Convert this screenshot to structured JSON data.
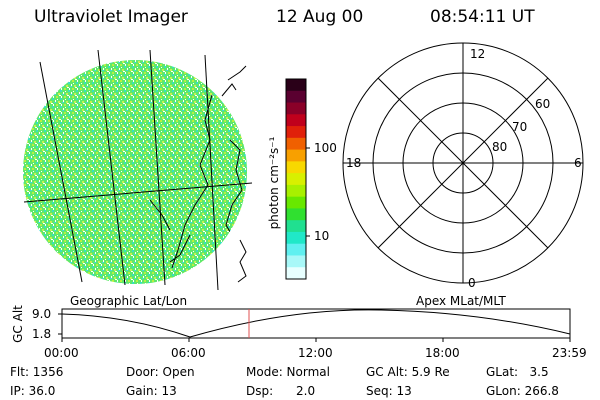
{
  "header": {
    "instrument": "Ultraviolet Imager",
    "date": "12 Aug 00",
    "time": "08:54:11 UT"
  },
  "colorbar": {
    "label": "photon cm⁻²s⁻¹",
    "ticks": [
      "100",
      "10"
    ]
  },
  "earth_map": {
    "caption": "Geographic Lat/Lon"
  },
  "polar_plot": {
    "caption": "Apex MLat/MLT",
    "mlt_labels": {
      "top": "12",
      "left": "18",
      "right": "6",
      "bottom": "0"
    },
    "lat_labels": [
      "60",
      "70",
      "80"
    ]
  },
  "altitude_strip": {
    "ylabel": "GC Alt",
    "yticks": [
      "9.0",
      "1.8"
    ],
    "xticks": [
      "00:00",
      "06:00",
      "12:00",
      "18:00",
      "23:59"
    ],
    "current_marker_time": "08:54"
  },
  "info": {
    "row1": {
      "flt": "Flt: 1356",
      "door": "Door: Open",
      "mode": "Mode: Normal",
      "gcalt": "GC Alt: 5.9 Re",
      "glat": "GLat:   3.5"
    },
    "row2": {
      "ip": "IP: 36.0",
      "gain": "Gain: 13",
      "dsp": "Dsp:      2.0",
      "seq": "Seq: 13",
      "glon": "GLon: 266.8"
    }
  },
  "colors": {
    "bar_colors": [
      "#2a0018",
      "#5a0030",
      "#8a0028",
      "#c0001c",
      "#e0200a",
      "#f06000",
      "#f8a000",
      "#f8d800",
      "#d8f000",
      "#a8f000",
      "#68e800",
      "#30e030",
      "#20e090",
      "#20e8c8",
      "#60f0f0",
      "#a8f8f8",
      "#e8ffff"
    ],
    "marker": "#e05050"
  }
}
